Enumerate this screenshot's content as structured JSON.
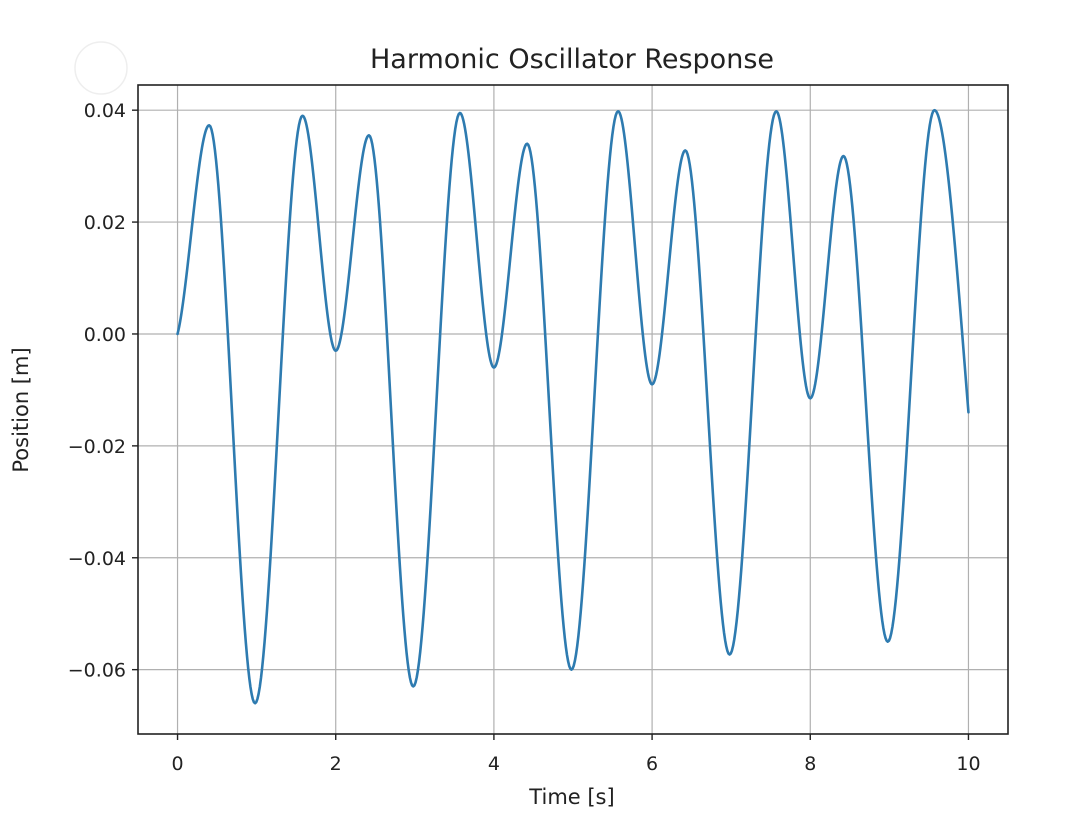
{
  "chart_data": {
    "type": "line",
    "title": "Harmonic Oscillator Response",
    "xlabel": "Time [s]",
    "ylabel": "Position [m]",
    "xlim": [
      -0.5,
      10.5
    ],
    "ylim": [
      -0.0715,
      0.0445
    ],
    "x_ticks": [
      0,
      2,
      4,
      6,
      8,
      10
    ],
    "x_tick_labels": [
      "0",
      "2",
      "4",
      "6",
      "8",
      "10"
    ],
    "y_ticks": [
      0.04,
      0.02,
      0.0,
      -0.02,
      -0.04,
      -0.06
    ],
    "y_tick_labels": [
      "0.04",
      "0.02",
      "0.00",
      "−0.02",
      "−0.04",
      "−0.06"
    ],
    "grid": true,
    "colors": {
      "line": "#2e7bb0",
      "grid": "#b0b0b0",
      "axis": "#222222"
    },
    "series": [
      {
        "x": [
          0.0,
          0.4,
          0.98,
          1.58,
          2.0,
          2.42,
          2.98,
          3.57,
          4.0,
          4.42,
          4.98,
          5.57,
          6.0,
          6.42,
          6.98,
          7.57,
          8.0,
          8.42,
          8.98,
          9.57,
          10.0
        ],
        "values": [
          0.0,
          0.0373,
          -0.066,
          0.039,
          -0.003,
          0.0355,
          -0.063,
          0.0395,
          -0.006,
          0.034,
          -0.06,
          0.0398,
          -0.009,
          0.0328,
          -0.0573,
          0.0398,
          -0.0115,
          0.0318,
          -0.055,
          0.04,
          -0.014
        ]
      }
    ]
  }
}
